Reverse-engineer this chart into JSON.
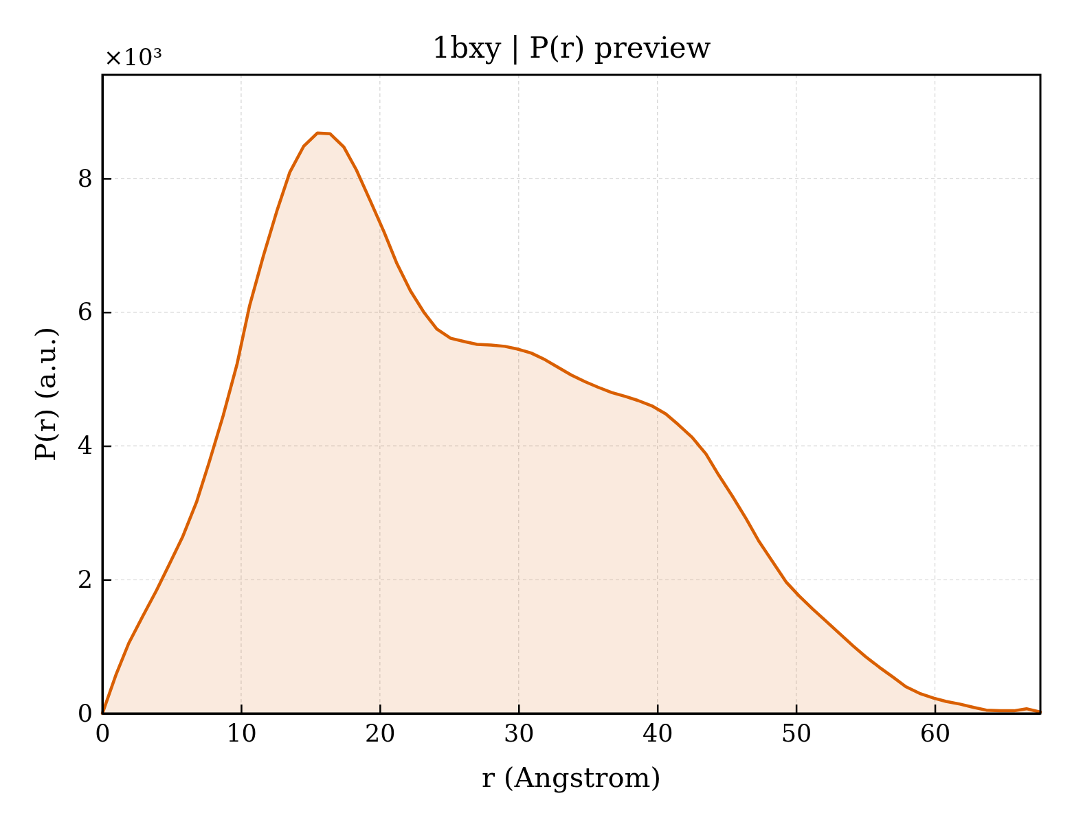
{
  "chart_data": {
    "type": "area",
    "title": "1bxy | P(r) preview",
    "xlabel": "r (Angstrom)",
    "ylabel": "P(r) (a.u.)",
    "annotations": [
      "×10³"
    ],
    "x": [
      0,
      1.0,
      1.9,
      2.9,
      3.9,
      4.8,
      5.8,
      6.8,
      7.7,
      8.7,
      9.7,
      10.6,
      11.6,
      12.6,
      13.5,
      14.5,
      15.5,
      16.4,
      17.4,
      18.3,
      19.3,
      20.3,
      21.2,
      22.2,
      23.2,
      24.1,
      25.1,
      26.1,
      27.0,
      28.0,
      29.0,
      29.9,
      30.9,
      31.9,
      32.8,
      33.8,
      34.8,
      35.7,
      36.7,
      37.7,
      38.6,
      39.6,
      40.6,
      41.5,
      42.5,
      43.5,
      44.4,
      45.4,
      46.4,
      47.3,
      48.3,
      49.3,
      50.2,
      51.2,
      52.1,
      53.1,
      54.1,
      55.0,
      56.0,
      57.0,
      57.9,
      58.9,
      59.9,
      60.8,
      61.8,
      62.8,
      63.7,
      64.7,
      65.7,
      66.6,
      67.6
    ],
    "values": [
      0,
      0.59,
      1.05,
      1.45,
      1.84,
      2.22,
      2.65,
      3.17,
      3.76,
      4.45,
      5.22,
      6.09,
      6.84,
      7.53,
      8.09,
      8.48,
      8.68,
      8.67,
      8.47,
      8.13,
      7.67,
      7.2,
      6.74,
      6.32,
      5.99,
      5.75,
      5.61,
      5.56,
      5.52,
      5.51,
      5.49,
      5.45,
      5.39,
      5.29,
      5.18,
      5.06,
      4.96,
      4.88,
      4.8,
      4.74,
      4.68,
      4.6,
      4.48,
      4.32,
      4.13,
      3.88,
      3.57,
      3.25,
      2.91,
      2.58,
      2.27,
      1.96,
      1.76,
      1.56,
      1.39,
      1.2,
      1.01,
      0.85,
      0.69,
      0.54,
      0.4,
      0.3,
      0.23,
      0.18,
      0.14,
      0.09,
      0.05,
      0.04,
      0.04,
      0.07,
      0.02
    ],
    "color": "#d95f02",
    "xlim": [
      0,
      67.6
    ],
    "ylim": [
      0,
      9.55
    ],
    "xticks": [
      0,
      10,
      20,
      30,
      40,
      50,
      60
    ],
    "yticks": [
      0,
      2,
      4,
      6,
      8
    ],
    "grid": true
  }
}
